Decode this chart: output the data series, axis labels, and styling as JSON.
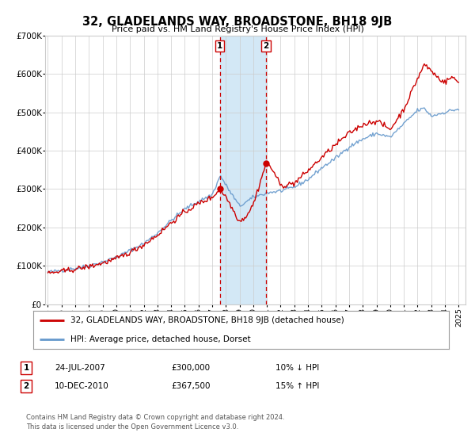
{
  "title": "32, GLADELANDS WAY, BROADSTONE, BH18 9JB",
  "subtitle": "Price paid vs. HM Land Registry's House Price Index (HPI)",
  "sale1_price": 300000,
  "sale1_label": "1",
  "sale1_date_str": "24-JUL-2007",
  "sale1_pct": "10% ↓ HPI",
  "sale2_price": 367500,
  "sale2_label": "2",
  "sale2_date_str": "10-DEC-2010",
  "sale2_pct": "15% ↑ HPI",
  "legend_line1": "32, GLADELANDS WAY, BROADSTONE, BH18 9JB (detached house)",
  "legend_line2": "HPI: Average price, detached house, Dorset",
  "footnote1": "Contains HM Land Registry data © Crown copyright and database right 2024.",
  "footnote2": "This data is licensed under the Open Government Licence v3.0.",
  "hpi_color": "#6699cc",
  "price_color": "#cc0000",
  "shade_color": "#cce4f5",
  "grid_color": "#cccccc",
  "bg_color": "#ffffff",
  "ymin": 0,
  "ymax": 700000,
  "yticks": [
    0,
    100000,
    200000,
    300000,
    400000,
    500000,
    600000,
    700000
  ],
  "ytick_labels": [
    "£0",
    "£100K",
    "£200K",
    "£300K",
    "£400K",
    "£500K",
    "£600K",
    "£700K"
  ],
  "sale1_x": 2007.558,
  "sale2_x": 2010.942
}
